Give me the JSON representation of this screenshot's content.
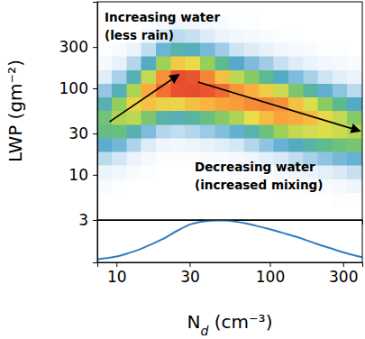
{
  "chart_data": [
    {
      "type": "heatmap",
      "y_label": "LWP (gm⁻²)",
      "log": true,
      "xlim": [
        7.5,
        400
      ],
      "ylim": [
        3,
        1000
      ],
      "yticks": [
        3,
        10,
        30,
        100,
        300
      ],
      "tick_labels": "y",
      "x_bins": [
        7.5,
        9.35,
        11.66,
        14.54,
        18.13,
        22.61,
        28.2,
        35.2,
        43.9,
        54.7,
        68.2,
        85.1,
        106.1,
        132.3,
        165,
        205.7,
        256.5,
        319.9,
        400
      ],
      "y_bins": [
        3,
        4.31,
        6.2,
        8.92,
        12.83,
        18.45,
        26.53,
        38.15,
        54.86,
        78.89,
        113.4,
        163.1,
        234.6,
        337.3,
        485.1,
        697.5,
        1000
      ],
      "zlim": [
        0,
        10
      ],
      "z": [
        [
          0,
          0,
          0,
          0,
          0,
          0,
          0,
          0,
          0,
          0,
          0,
          0,
          0,
          0,
          0,
          0,
          0,
          0
        ],
        [
          0,
          0,
          0,
          0,
          0,
          0,
          0,
          0,
          0,
          0,
          0,
          0,
          0,
          0,
          0,
          0,
          0.1,
          0.1
        ],
        [
          0.2,
          0.1,
          0,
          0,
          0,
          0,
          0,
          0,
          0,
          0,
          0,
          0,
          0.1,
          0.1,
          0.2,
          0.2,
          0.3,
          0.5
        ],
        [
          0.6,
          0.4,
          0.2,
          0.1,
          0,
          0,
          0,
          0,
          0,
          0.1,
          0.1,
          0.2,
          0.3,
          0.5,
          0.6,
          0.8,
          1.1,
          1.4
        ],
        [
          1.6,
          1.2,
          0.6,
          0.3,
          0.1,
          0.1,
          0.1,
          0.2,
          0.2,
          0.3,
          0.5,
          0.8,
          1.1,
          1.5,
          1.9,
          2.3,
          2.7,
          3.0
        ],
        [
          3.2,
          2.8,
          1.8,
          1.0,
          0.5,
          0.4,
          0.5,
          0.7,
          0.9,
          1.2,
          1.7,
          2.3,
          3.0,
          3.5,
          4.0,
          4.5,
          4.8,
          5.0
        ],
        [
          4.6,
          4.7,
          3.8,
          2.6,
          1.7,
          1.5,
          1.7,
          2.1,
          2.5,
          3.1,
          3.9,
          4.8,
          5.7,
          6.2,
          6.4,
          6.5,
          6.3,
          6.0
        ],
        [
          4.9,
          5.9,
          6.1,
          5.1,
          4.0,
          3.7,
          4.1,
          4.7,
          5.3,
          5.9,
          6.7,
          7.5,
          8.0,
          7.9,
          7.5,
          6.9,
          6.2,
          5.3
        ],
        [
          3.8,
          5.5,
          7.0,
          7.4,
          7.0,
          6.9,
          7.4,
          7.7,
          8.0,
          8.1,
          8.4,
          8.5,
          8.3,
          7.4,
          6.5,
          5.4,
          4.4,
          3.4
        ],
        [
          2.2,
          3.7,
          5.9,
          7.9,
          8.9,
          9.6,
          9.7,
          9.5,
          9.0,
          8.2,
          7.8,
          7.1,
          6.3,
          5.1,
          4.1,
          3.1,
          2.3,
          1.6
        ],
        [
          0.9,
          1.9,
          3.7,
          6.2,
          8.3,
          9.7,
          9.5,
          8.5,
          7.4,
          6.1,
          5.3,
          4.4,
          3.5,
          2.6,
          1.9,
          1.3,
          0.9,
          0.6
        ],
        [
          0.3,
          0.7,
          1.7,
          3.5,
          5.7,
          7.2,
          6.8,
          5.6,
          4.4,
          3.3,
          2.6,
          2.0,
          1.4,
          1.0,
          0.6,
          0.4,
          0.3,
          0.2
        ],
        [
          0.1,
          0.2,
          0.6,
          1.5,
          2.9,
          3.9,
          3.6,
          2.7,
          2.0,
          1.3,
          1.0,
          0.7,
          0.4,
          0.3,
          0.2,
          0.1,
          0.1,
          0
        ],
        [
          0,
          0,
          0.1,
          0.5,
          1.1,
          1.6,
          1.4,
          1.0,
          0.6,
          0.4,
          0.3,
          0.2,
          0.1,
          0.1,
          0,
          0,
          0,
          0
        ],
        [
          0,
          0,
          0,
          0.1,
          0.3,
          0.5,
          0.4,
          0.3,
          0.2,
          0.1,
          0.1,
          0,
          0,
          0,
          0,
          0,
          0,
          0
        ],
        [
          0,
          0,
          0,
          0,
          0.1,
          0.1,
          0.1,
          0,
          0,
          0,
          0,
          0,
          0,
          0,
          0,
          0,
          0,
          0
        ]
      ],
      "annotations": [
        [
          "Increasing water",
          "(less rain)"
        ],
        [
          "Decreasing water",
          "(increased mixing)"
        ]
      ],
      "arrows": [
        {
          "x": [
            9,
            25.5
          ],
          "y": [
            41,
            144
          ]
        },
        {
          "x": [
            34,
            387
          ],
          "y": [
            118,
            32
          ]
        }
      ]
    },
    {
      "type": "line",
      "x_label": "Nd (cm⁻³)",
      "log": "x",
      "xlim": [
        7.5,
        400
      ],
      "ylim": [
        0,
        1
      ],
      "xticks": [
        10,
        30,
        100,
        300
      ],
      "yticks": [],
      "tick_labels": "x",
      "color": "#2f7ec0",
      "x": [
        7.5,
        9,
        10,
        12,
        14,
        17,
        20,
        25,
        30,
        35,
        40,
        45,
        50,
        60,
        70,
        80,
        100,
        120,
        150,
        200,
        250,
        300,
        400
      ],
      "values": [
        0.07,
        0.11,
        0.14,
        0.22,
        0.3,
        0.43,
        0.55,
        0.75,
        0.89,
        0.95,
        0.98,
        0.99,
        0.99,
        0.96,
        0.92,
        0.87,
        0.78,
        0.7,
        0.6,
        0.44,
        0.33,
        0.24,
        0.12
      ]
    }
  ]
}
